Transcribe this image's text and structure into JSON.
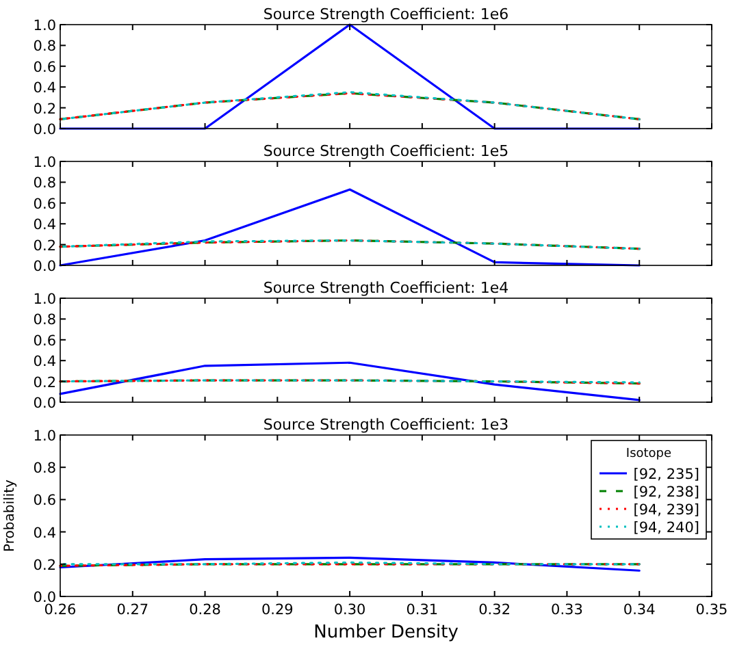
{
  "chart_data": [
    {
      "type": "line",
      "title": "Source Strength Coefficient: 1e6",
      "x": [
        0.26,
        0.28,
        0.3,
        0.32,
        0.34
      ],
      "xlim": [
        0.26,
        0.35
      ],
      "xticks": [
        {
          "value": 0.26,
          "label": null
        },
        {
          "value": 0.27,
          "label": null
        },
        {
          "value": 0.28,
          "label": null
        },
        {
          "value": 0.29,
          "label": null
        },
        {
          "value": 0.3,
          "label": null
        },
        {
          "value": 0.31,
          "label": null
        },
        {
          "value": 0.32,
          "label": null
        },
        {
          "value": 0.33,
          "label": null
        },
        {
          "value": 0.34,
          "label": null
        },
        {
          "value": 0.35,
          "label": null
        }
      ],
      "ylim": [
        0,
        1
      ],
      "yticks": [
        {
          "value": 0,
          "label": "0.0"
        },
        {
          "value": 0.2,
          "label": "0.2"
        },
        {
          "value": 0.4,
          "label": "0.4"
        },
        {
          "value": 0.6,
          "label": "0.6"
        },
        {
          "value": 0.8,
          "label": "0.8"
        },
        {
          "value": 1,
          "label": "1.0"
        }
      ],
      "tick_labels": "y",
      "series": [
        {
          "color": "#0000ff",
          "line_style": "solid",
          "values": [
            0,
            0,
            1,
            0,
            0
          ]
        },
        {
          "color": "#008000",
          "line_style": "dashed",
          "values": [
            0.09,
            0.25,
            0.34,
            0.25,
            0.09
          ]
        },
        {
          "color": "#ff0000",
          "line_style": "dotted",
          "values": [
            0.09,
            0.25,
            0.34,
            0.25,
            0.09
          ]
        },
        {
          "color": "#00bfbf",
          "line_style": "dotted",
          "values": [
            0.09,
            0.25,
            0.35,
            0.25,
            0.09
          ]
        }
      ]
    },
    {
      "type": "line",
      "title": "Source Strength Coefficient: 1e5",
      "x": [
        0.26,
        0.28,
        0.3,
        0.32,
        0.34
      ],
      "xlim": [
        0.26,
        0.35
      ],
      "xticks": [
        {
          "value": 0.26,
          "label": null
        },
        {
          "value": 0.27,
          "label": null
        },
        {
          "value": 0.28,
          "label": null
        },
        {
          "value": 0.29,
          "label": null
        },
        {
          "value": 0.3,
          "label": null
        },
        {
          "value": 0.31,
          "label": null
        },
        {
          "value": 0.32,
          "label": null
        },
        {
          "value": 0.33,
          "label": null
        },
        {
          "value": 0.34,
          "label": null
        },
        {
          "value": 0.35,
          "label": null
        }
      ],
      "ylim": [
        0,
        1
      ],
      "yticks": [
        {
          "value": 0,
          "label": "0.0"
        },
        {
          "value": 0.2,
          "label": "0.2"
        },
        {
          "value": 0.4,
          "label": "0.4"
        },
        {
          "value": 0.6,
          "label": "0.6"
        },
        {
          "value": 0.8,
          "label": "0.8"
        },
        {
          "value": 1,
          "label": "1.0"
        }
      ],
      "tick_labels": "y",
      "series": [
        {
          "color": "#0000ff",
          "line_style": "solid",
          "values": [
            0,
            0.24,
            0.73,
            0.03,
            0
          ]
        },
        {
          "color": "#008000",
          "line_style": "dashed",
          "values": [
            0.18,
            0.22,
            0.24,
            0.21,
            0.16
          ]
        },
        {
          "color": "#ff0000",
          "line_style": "dotted",
          "values": [
            0.18,
            0.22,
            0.24,
            0.21,
            0.16
          ]
        },
        {
          "color": "#00bfbf",
          "line_style": "dotted",
          "values": [
            0.18,
            0.23,
            0.24,
            0.21,
            0.16
          ]
        }
      ]
    },
    {
      "type": "line",
      "title": "Source Strength Coefficient: 1e4",
      "x": [
        0.26,
        0.28,
        0.3,
        0.32,
        0.34
      ],
      "xlim": [
        0.26,
        0.35
      ],
      "xticks": [
        {
          "value": 0.26,
          "label": null
        },
        {
          "value": 0.27,
          "label": null
        },
        {
          "value": 0.28,
          "label": null
        },
        {
          "value": 0.29,
          "label": null
        },
        {
          "value": 0.3,
          "label": null
        },
        {
          "value": 0.31,
          "label": null
        },
        {
          "value": 0.32,
          "label": null
        },
        {
          "value": 0.33,
          "label": null
        },
        {
          "value": 0.34,
          "label": null
        },
        {
          "value": 0.35,
          "label": null
        }
      ],
      "ylim": [
        0,
        1
      ],
      "yticks": [
        {
          "value": 0,
          "label": "0.0"
        },
        {
          "value": 0.2,
          "label": "0.2"
        },
        {
          "value": 0.4,
          "label": "0.4"
        },
        {
          "value": 0.6,
          "label": "0.6"
        },
        {
          "value": 0.8,
          "label": "0.8"
        },
        {
          "value": 1,
          "label": "1.0"
        }
      ],
      "tick_labels": "y",
      "series": [
        {
          "color": "#0000ff",
          "line_style": "solid",
          "values": [
            0.08,
            0.35,
            0.38,
            0.17,
            0.02
          ]
        },
        {
          "color": "#008000",
          "line_style": "dashed",
          "values": [
            0.2,
            0.21,
            0.21,
            0.2,
            0.18
          ]
        },
        {
          "color": "#ff0000",
          "line_style": "dotted",
          "values": [
            0.2,
            0.21,
            0.21,
            0.2,
            0.18
          ]
        },
        {
          "color": "#00bfbf",
          "line_style": "dotted",
          "values": [
            0.2,
            0.21,
            0.21,
            0.2,
            0.19
          ]
        }
      ]
    },
    {
      "type": "line",
      "title": "Source Strength Coefficient: 1e3",
      "xlabel": "Number Density",
      "ylabel": "Probability",
      "legend_title": "Isotope",
      "legend": "top right",
      "x": [
        0.26,
        0.28,
        0.3,
        0.32,
        0.34
      ],
      "xlim": [
        0.26,
        0.35
      ],
      "xticks": [
        {
          "value": 0.26,
          "label": "0.26"
        },
        {
          "value": 0.27,
          "label": "0.27"
        },
        {
          "value": 0.28,
          "label": "0.28"
        },
        {
          "value": 0.29,
          "label": "0.29"
        },
        {
          "value": 0.3,
          "label": "0.30"
        },
        {
          "value": 0.31,
          "label": "0.31"
        },
        {
          "value": 0.32,
          "label": "0.32"
        },
        {
          "value": 0.33,
          "label": "0.33"
        },
        {
          "value": 0.34,
          "label": "0.34"
        },
        {
          "value": 0.35,
          "label": "0.35"
        }
      ],
      "ylim": [
        0,
        1
      ],
      "yticks": [
        {
          "value": 0,
          "label": "0.0"
        },
        {
          "value": 0.2,
          "label": "0.2"
        },
        {
          "value": 0.4,
          "label": "0.4"
        },
        {
          "value": 0.6,
          "label": "0.6"
        },
        {
          "value": 0.8,
          "label": "0.8"
        },
        {
          "value": 1,
          "label": "1.0"
        }
      ],
      "series": [
        {
          "name": "[92, 235]",
          "color": "#0000ff",
          "line_style": "solid",
          "values": [
            0.18,
            0.23,
            0.24,
            0.21,
            0.16
          ]
        },
        {
          "name": "[92, 238]",
          "color": "#008000",
          "line_style": "dashed",
          "values": [
            0.19,
            0.2,
            0.2,
            0.2,
            0.2
          ]
        },
        {
          "name": "[94, 239]",
          "color": "#ff0000",
          "line_style": "dotted",
          "values": [
            0.19,
            0.2,
            0.2,
            0.2,
            0.2
          ]
        },
        {
          "name": "[94, 240]",
          "color": "#00bfbf",
          "line_style": "dotted",
          "values": [
            0.2,
            0.2,
            0.21,
            0.2,
            0.2
          ]
        }
      ]
    }
  ]
}
